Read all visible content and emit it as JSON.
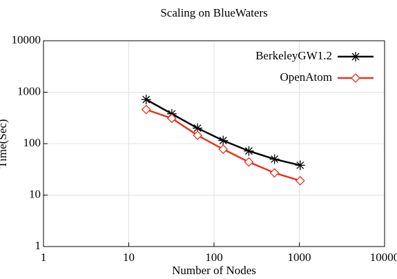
{
  "chart_data": {
    "type": "line",
    "title": "Scaling on BlueWaters",
    "xlabel": "Number of Nodes",
    "ylabel": "Time(Sec)",
    "x": [
      16,
      32,
      64,
      128,
      256,
      512,
      1024
    ],
    "series": [
      {
        "name": "BerkeleyGW1.2",
        "color": "#000000",
        "marker": "star",
        "values": [
          720,
          380,
          200,
          115,
          72,
          50,
          38
        ]
      },
      {
        "name": "OpenAtom",
        "color": "#e8321e",
        "marker": "diamond",
        "values": [
          460,
          310,
          145,
          78,
          44,
          27,
          19
        ]
      }
    ],
    "xlim": [
      1,
      10000
    ],
    "xticks": [
      1,
      10,
      100,
      1000,
      10000
    ],
    "ylim": [
      1,
      10000
    ],
    "yticks": [
      1,
      10,
      100,
      1000,
      10000
    ],
    "xscale": "log",
    "yscale": "log",
    "grid": true,
    "legend": "upper right"
  }
}
